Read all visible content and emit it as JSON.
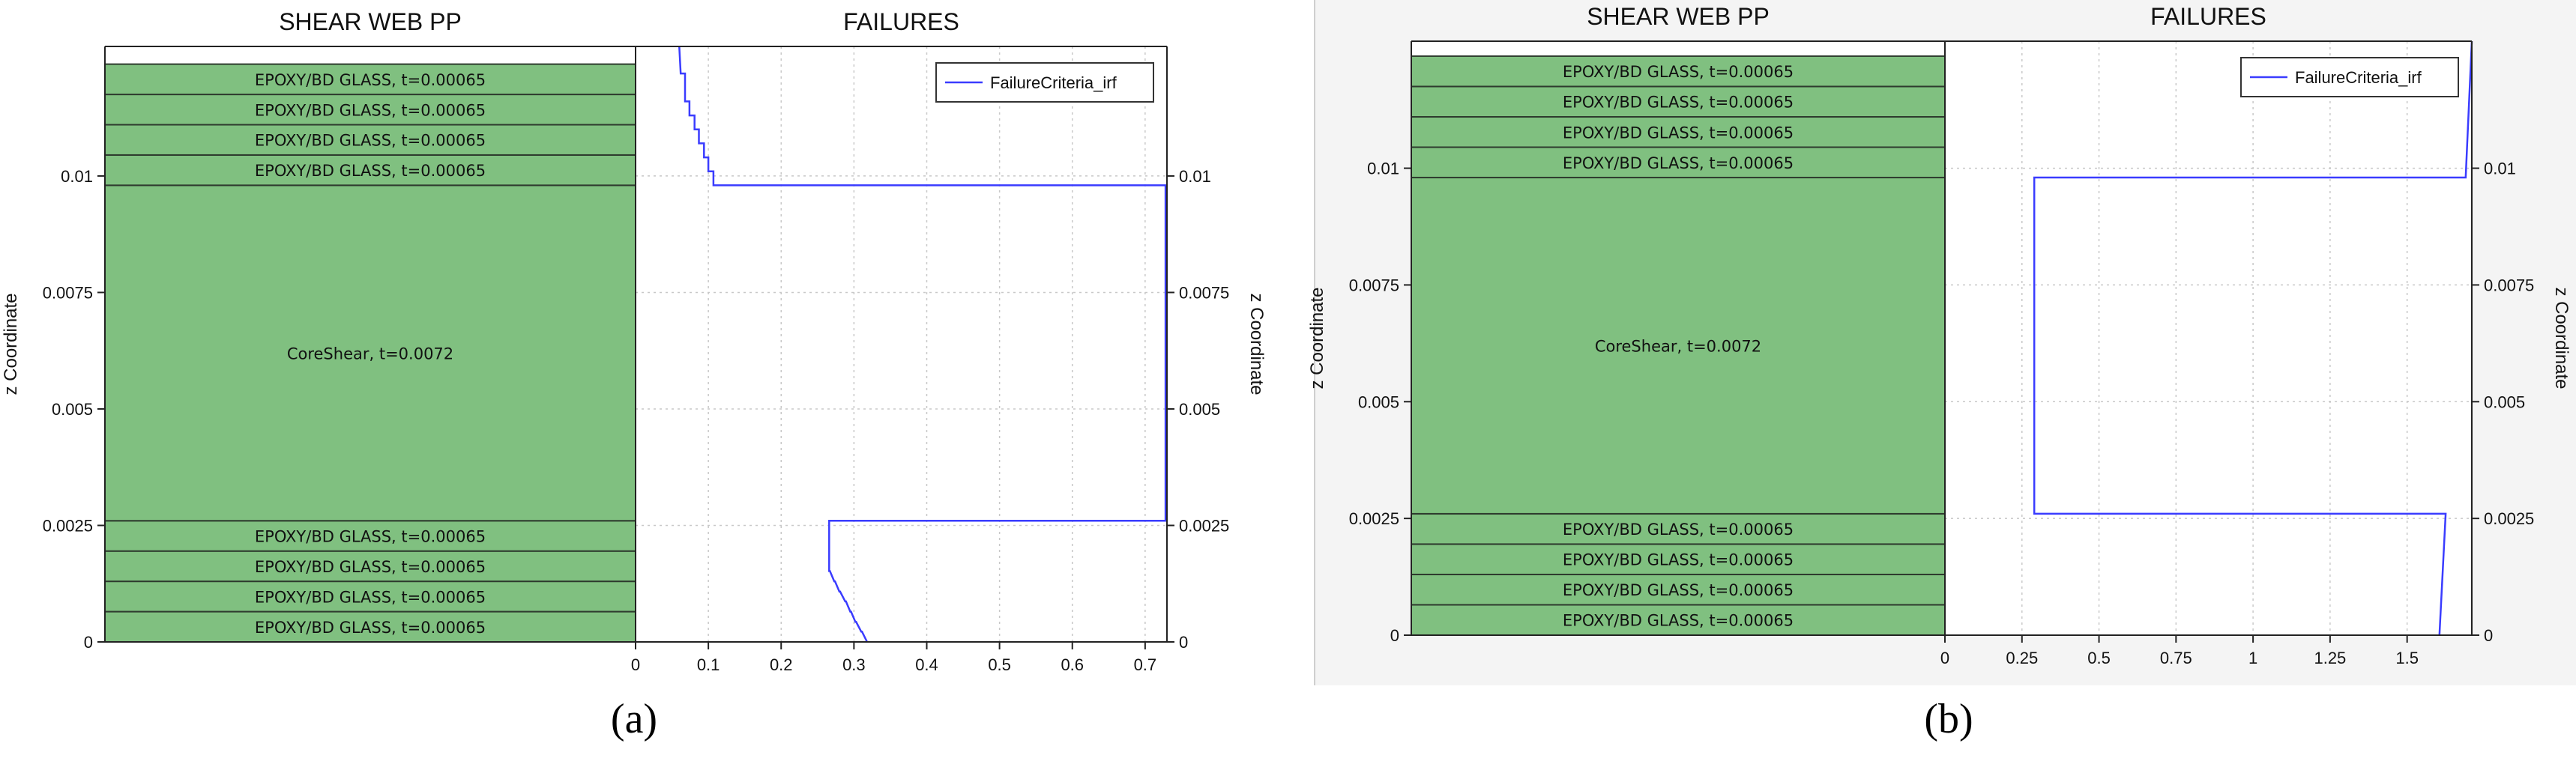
{
  "chart_data": [
    {
      "id": "a",
      "type": "line",
      "panel_label": "(a)",
      "left_title": "SHEAR WEB PP",
      "right_title": "FAILURES",
      "ylabel_left": "z Coordinate",
      "ylabel_right": "z Coordinate",
      "ylim": [
        0,
        0.01278
      ],
      "y_ticks": [
        0,
        0.0025,
        0.005,
        0.0075,
        0.01
      ],
      "y_tick_labels": [
        "0",
        "0.0025",
        "0.005",
        "0.0075",
        "0.01"
      ],
      "xlim": [
        0,
        0.73
      ],
      "x_ticks": [
        0,
        0.1,
        0.2,
        0.3,
        0.4,
        0.5,
        0.6,
        0.7
      ],
      "x_tick_labels": [
        "0",
        "0.1",
        "0.2",
        "0.3",
        "0.4",
        "0.5",
        "0.6",
        "0.7"
      ],
      "grid": true,
      "legend_position": "top-right",
      "layers": [
        {
          "label": "EPOXY/BD GLASS, t=0.00065",
          "z0": 0,
          "z1": 0.00065
        },
        {
          "label": "EPOXY/BD GLASS, t=0.00065",
          "z0": 0.00065,
          "z1": 0.0013
        },
        {
          "label": "EPOXY/BD GLASS, t=0.00065",
          "z0": 0.0013,
          "z1": 0.00195
        },
        {
          "label": "EPOXY/BD GLASS, t=0.00065",
          "z0": 0.00195,
          "z1": 0.0026
        },
        {
          "label": "CoreShear, t=0.0072",
          "z0": 0.0026,
          "z1": 0.0098
        },
        {
          "label": "EPOXY/BD GLASS, t=0.00065",
          "z0": 0.0098,
          "z1": 0.01045
        },
        {
          "label": "EPOXY/BD GLASS, t=0.00065",
          "z0": 0.01045,
          "z1": 0.0111
        },
        {
          "label": "EPOXY/BD GLASS, t=0.00065",
          "z0": 0.0111,
          "z1": 0.01175
        },
        {
          "label": "EPOXY/BD GLASS, t=0.00065",
          "z0": 0.01175,
          "z1": 0.0124
        }
      ],
      "series": [
        {
          "name": "FailureCriteria_irf",
          "color": "#3a3cff",
          "points": [
            [
              0.318,
              0
            ],
            [
              0.311,
              0.00022
            ],
            [
              0.31,
              0.00022
            ],
            [
              0.303,
              0.00043
            ],
            [
              0.302,
              0.00043
            ],
            [
              0.296,
              0.00065
            ],
            [
              0.295,
              0.00065
            ],
            [
              0.289,
              0.00087
            ],
            [
              0.288,
              0.00087
            ],
            [
              0.281,
              0.00108
            ],
            [
              0.28,
              0.00108
            ],
            [
              0.274,
              0.0013
            ],
            [
              0.273,
              0.0013
            ],
            [
              0.267,
              0.00152
            ],
            [
              0.266,
              0.00152
            ],
            [
              0.266,
              0.0026
            ],
            [
              0.728,
              0.0026
            ],
            [
              0.728,
              0.0098
            ],
            [
              0.107,
              0.0098
            ],
            [
              0.107,
              0.0101
            ],
            [
              0.1,
              0.0101
            ],
            [
              0.1,
              0.0104
            ],
            [
              0.094,
              0.0104
            ],
            [
              0.094,
              0.0107
            ],
            [
              0.087,
              0.0107
            ],
            [
              0.087,
              0.011
            ],
            [
              0.081,
              0.011
            ],
            [
              0.081,
              0.0113
            ],
            [
              0.074,
              0.0113
            ],
            [
              0.074,
              0.0116
            ],
            [
              0.068,
              0.0116
            ],
            [
              0.068,
              0.0122
            ],
            [
              0.062,
              0.0122
            ],
            [
              0.06,
              0.01278
            ]
          ]
        }
      ]
    },
    {
      "id": "b",
      "type": "line",
      "panel_label": "(b)",
      "left_title": "SHEAR WEB PP",
      "right_title": "FAILURES",
      "ylabel_left": "z Coordinate",
      "ylabel_right": "z Coordinate",
      "ylim": [
        0,
        0.01272
      ],
      "y_ticks": [
        0,
        0.0025,
        0.005,
        0.0075,
        0.01
      ],
      "y_tick_labels": [
        "0",
        "0.0025",
        "0.005",
        "0.0075",
        "0.01"
      ],
      "xlim": [
        0,
        1.71
      ],
      "x_ticks": [
        0,
        0.25,
        0.5,
        0.75,
        1,
        1.25,
        1.5
      ],
      "x_tick_labels": [
        "0",
        "0.25",
        "0.5",
        "0.75",
        "1",
        "1.25",
        "1.5"
      ],
      "grid": true,
      "legend_position": "top-right",
      "layers": [
        {
          "label": "EPOXY/BD GLASS, t=0.00065",
          "z0": 0,
          "z1": 0.00065
        },
        {
          "label": "EPOXY/BD GLASS, t=0.00065",
          "z0": 0.00065,
          "z1": 0.0013
        },
        {
          "label": "EPOXY/BD GLASS, t=0.00065",
          "z0": 0.0013,
          "z1": 0.00195
        },
        {
          "label": "EPOXY/BD GLASS, t=0.00065",
          "z0": 0.00195,
          "z1": 0.0026
        },
        {
          "label": "CoreShear, t=0.0072",
          "z0": 0.0026,
          "z1": 0.0098
        },
        {
          "label": "EPOXY/BD GLASS, t=0.00065",
          "z0": 0.0098,
          "z1": 0.01045
        },
        {
          "label": "EPOXY/BD GLASS, t=0.00065",
          "z0": 0.01045,
          "z1": 0.0111
        },
        {
          "label": "EPOXY/BD GLASS, t=0.00065",
          "z0": 0.0111,
          "z1": 0.01175
        },
        {
          "label": "EPOXY/BD GLASS, t=0.00065",
          "z0": 0.01175,
          "z1": 0.0124
        }
      ],
      "series": [
        {
          "name": "FailureCriteria_irf",
          "color": "#3a3cff",
          "points": [
            [
              1.605,
              0
            ],
            [
              1.625,
              0.0026
            ],
            [
              0.29,
              0.0026
            ],
            [
              0.29,
              0.0098
            ],
            [
              1.69,
              0.0098
            ],
            [
              1.71,
              0.01272
            ]
          ]
        }
      ]
    }
  ]
}
